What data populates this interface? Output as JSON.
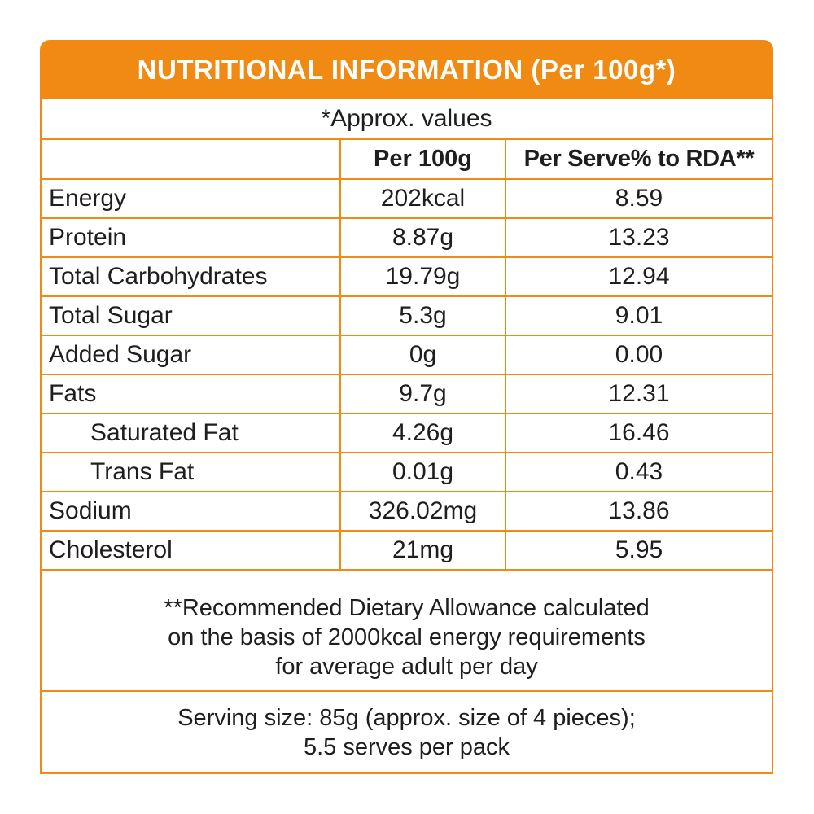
{
  "header": {
    "title": "NUTRITIONAL INFORMATION (Per 100g*)"
  },
  "approx_note": "*Approx. values",
  "table": {
    "columns": [
      "",
      "Per 100g",
      "Per Serve% to RDA**"
    ],
    "rows": [
      {
        "name": "Energy",
        "per100g": "202kcal",
        "rda": "8.59",
        "indent": false
      },
      {
        "name": "Protein",
        "per100g": "8.87g",
        "rda": "13.23",
        "indent": false
      },
      {
        "name": "Total Carbohydrates",
        "per100g": "19.79g",
        "rda": "12.94",
        "indent": false
      },
      {
        "name": "Total Sugar",
        "per100g": "5.3g",
        "rda": "9.01",
        "indent": false
      },
      {
        "name": "Added Sugar",
        "per100g": "0g",
        "rda": "0.00",
        "indent": false
      },
      {
        "name": "Fats",
        "per100g": "9.7g",
        "rda": "12.31",
        "indent": false
      },
      {
        "name": "Saturated Fat",
        "per100g": "4.26g",
        "rda": "16.46",
        "indent": true
      },
      {
        "name": "Trans Fat",
        "per100g": "0.01g",
        "rda": "0.43",
        "indent": true
      },
      {
        "name": "Sodium",
        "per100g": "326.02mg",
        "rda": "13.86",
        "indent": false
      },
      {
        "name": "Cholesterol",
        "per100g": "21mg",
        "rda": "5.95",
        "indent": false
      }
    ]
  },
  "rda_note": {
    "lines": [
      "**Recommended Dietary Allowance calculated",
      "on the basis of 2000kcal energy requirements",
      "for average adult per day"
    ]
  },
  "serving": {
    "lines": [
      "Serving size: 85g (approx. size of 4 pieces);",
      "5.5 serves per pack"
    ]
  },
  "colors": {
    "accent": "#f08a12",
    "text": "#1e1e1e",
    "header_text": "#ffffff"
  }
}
